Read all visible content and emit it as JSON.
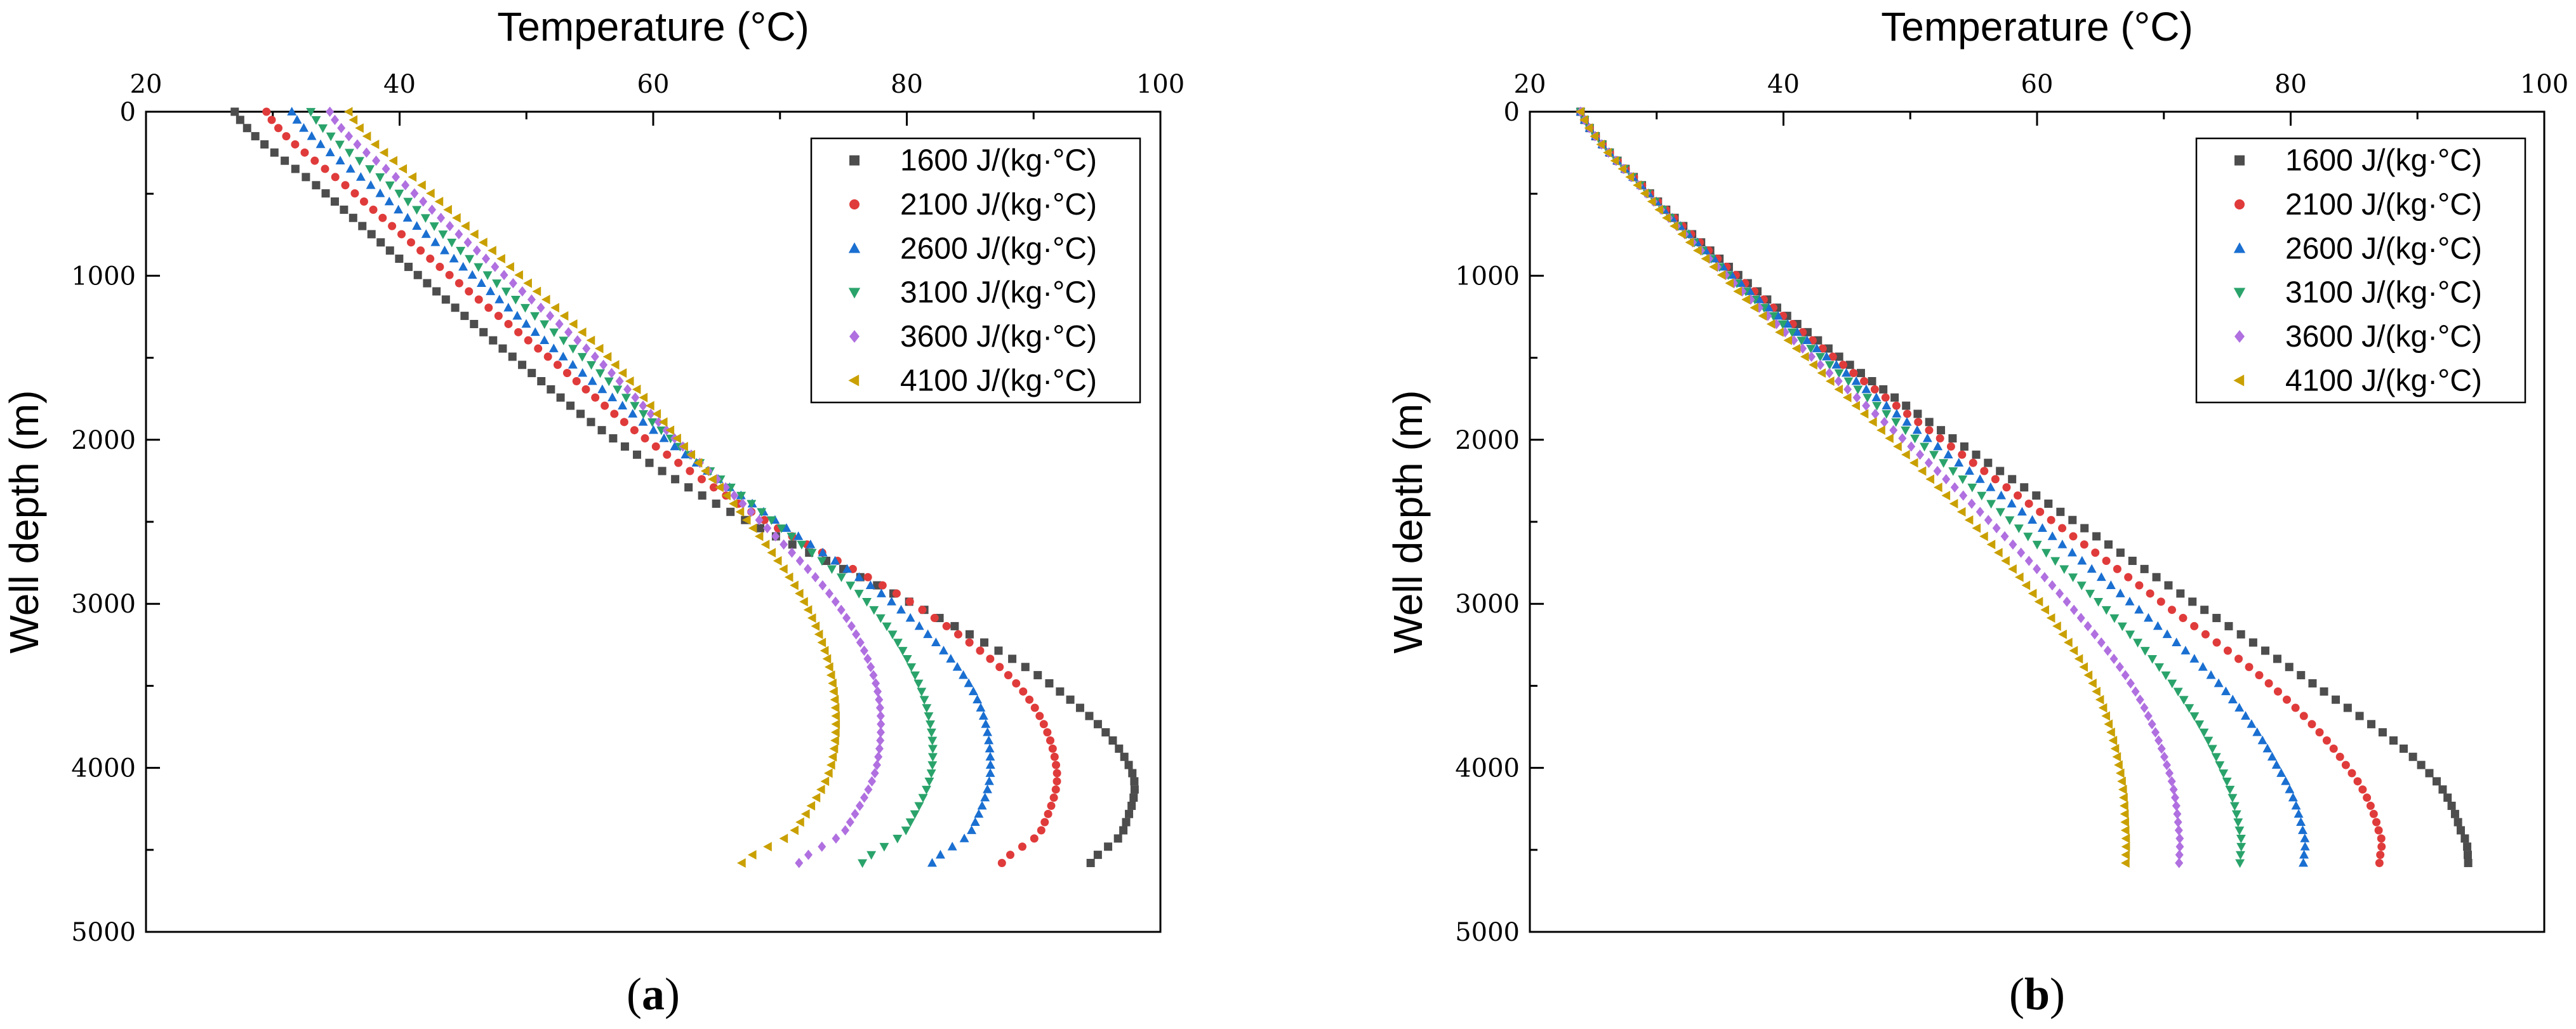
{
  "figure": {
    "panels": [
      "a",
      "b"
    ]
  },
  "chart_data": [
    {
      "id": "a",
      "type": "scatter",
      "caption_letter": "a",
      "caption_open": "(",
      "caption_close": ")",
      "xlabel": "Temperature (°C)",
      "ylabel": "Well depth (m)",
      "xlim": [
        20,
        100
      ],
      "ylim": [
        0,
        5000
      ],
      "y_inverted": true,
      "x_axis_position": "top",
      "xticks": [
        20,
        40,
        60,
        80,
        100
      ],
      "yticks": [
        0,
        1000,
        2000,
        3000,
        4000,
        5000
      ],
      "grid": false,
      "legend_position": "top-right",
      "depth_points": [
        0,
        500,
        1000,
        1500,
        2000,
        2500,
        3000,
        3500,
        4000,
        4400,
        4580
      ],
      "series": [
        {
          "name": "1600 J/(kg·°C)",
          "marker": "square",
          "color": "#4d4d4d",
          "temperature": [
            27,
            34.2,
            41.5,
            49,
            57,
            67.5,
            80.5,
            91.5,
            97.6,
            97,
            94.5
          ]
        },
        {
          "name": "2100 J/(kg·°C)",
          "marker": "circle",
          "color": "#e03b3b",
          "temperature": [
            29.5,
            36.5,
            44,
            51.8,
            59.5,
            69,
            80.5,
            88.8,
            91.8,
            90.5,
            87.5
          ]
        },
        {
          "name": "2600 J/(kg·°C)",
          "marker": "triangle-up",
          "color": "#1a6fd1",
          "temperature": [
            31.5,
            38.5,
            45.8,
            53,
            61,
            69.8,
            79,
            85,
            86.6,
            85,
            82
          ]
        },
        {
          "name": "3100 J/(kg·°C)",
          "marker": "triangle-down",
          "color": "#2aa36b",
          "temperature": [
            33,
            40,
            47,
            54.5,
            61.5,
            69.5,
            77,
            81,
            82,
            79.8,
            76.5
          ]
        },
        {
          "name": "3600 J/(kg·°C)",
          "marker": "diamond",
          "color": "#b070e0",
          "temperature": [
            34.5,
            41.2,
            48.3,
            55.5,
            61.8,
            68.5,
            74.5,
            77.6,
            77.6,
            75,
            71.5
          ]
        },
        {
          "name": "4100 J/(kg·°C)",
          "marker": "triangle-left",
          "color": "#c9a000",
          "temperature": [
            36,
            42.5,
            49.5,
            56.5,
            62,
            67.5,
            72,
            74.2,
            74,
            71,
            67
          ]
        }
      ]
    },
    {
      "id": "b",
      "type": "scatter",
      "caption_letter": "b",
      "caption_open": "(",
      "caption_close": ")",
      "xlabel": "Temperature (°C)",
      "ylabel": "Well depth (m)",
      "xlim": [
        20,
        100
      ],
      "ylim": [
        0,
        5000
      ],
      "y_inverted": true,
      "x_axis_position": "top",
      "xticks": [
        20,
        40,
        60,
        80,
        100
      ],
      "yticks": [
        0,
        1000,
        2000,
        3000,
        4000,
        5000
      ],
      "grid": false,
      "legend_position": "top-right",
      "depth_points": [
        0,
        500,
        1000,
        1500,
        2000,
        2500,
        3000,
        3500,
        4000,
        4400,
        4580
      ],
      "series": [
        {
          "name": "1600 J/(kg·°C)",
          "marker": "square",
          "color": "#4d4d4d",
          "temperature": [
            24,
            29.5,
            36.5,
            44.5,
            53.5,
            63,
            72.5,
            82,
            90.5,
            93.5,
            94
          ]
        },
        {
          "name": "2100 J/(kg·°C)",
          "marker": "circle",
          "color": "#e03b3b",
          "temperature": [
            24,
            29.5,
            36.3,
            44,
            52.5,
            61.3,
            70,
            78.5,
            84.5,
            87,
            87
          ]
        },
        {
          "name": "2600 J/(kg·°C)",
          "marker": "triangle-up",
          "color": "#1a6fd1",
          "temperature": [
            24,
            29.4,
            36,
            43.5,
            51.5,
            59.8,
            67.5,
            74.5,
            79,
            81,
            81
          ]
        },
        {
          "name": "3100 J/(kg·°C)",
          "marker": "triangle-down",
          "color": "#2aa36b",
          "temperature": [
            24,
            29.3,
            35.7,
            43,
            50.5,
            58,
            65,
            70.8,
            74.5,
            76,
            76
          ]
        },
        {
          "name": "3600 J/(kg·°C)",
          "marker": "diamond",
          "color": "#b070e0",
          "temperature": [
            24,
            29.2,
            35.5,
            42.3,
            49.5,
            56.3,
            62.5,
            67.5,
            70.3,
            71.2,
            71.2
          ]
        },
        {
          "name": "4100 J/(kg·°C)",
          "marker": "triangle-left",
          "color": "#c9a000",
          "temperature": [
            24,
            29.1,
            35.2,
            41.8,
            48.5,
            54.8,
            60.3,
            64.5,
            66.5,
            67,
            67
          ]
        }
      ]
    }
  ]
}
